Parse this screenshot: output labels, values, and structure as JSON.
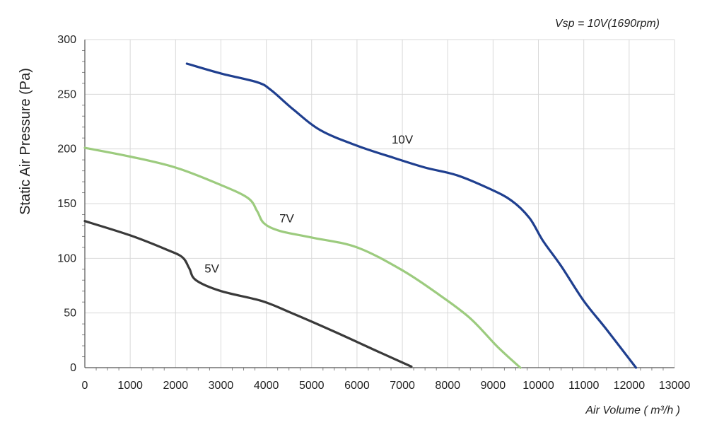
{
  "chart_data": {
    "type": "line",
    "annotation": "Vsp = 10V(1690rpm)",
    "xlabel": "Air Volume ( m³/h )",
    "ylabel": "Static Air Pressure  (Pa)",
    "xlim": [
      0,
      13000
    ],
    "ylim": [
      0,
      300
    ],
    "x_ticks": [
      0,
      1000,
      2000,
      3000,
      4000,
      5000,
      6000,
      7000,
      8000,
      9000,
      10000,
      11000,
      12000,
      13000
    ],
    "y_ticks": [
      0,
      50,
      100,
      150,
      200,
      250,
      300
    ],
    "grid": true,
    "legend": "none",
    "series": [
      {
        "name": "10V",
        "color": "#1f3f8f",
        "label_at": [
          7000,
          205
        ],
        "points": [
          [
            2250,
            278
          ],
          [
            3000,
            269
          ],
          [
            3800,
            261
          ],
          [
            4100,
            254
          ],
          [
            4600,
            236
          ],
          [
            5200,
            217
          ],
          [
            6000,
            203
          ],
          [
            6800,
            192
          ],
          [
            7500,
            183
          ],
          [
            8200,
            176
          ],
          [
            8900,
            164
          ],
          [
            9400,
            153
          ],
          [
            9800,
            137
          ],
          [
            10100,
            116
          ],
          [
            10500,
            93
          ],
          [
            11000,
            61
          ],
          [
            11500,
            35
          ],
          [
            12150,
            0
          ]
        ]
      },
      {
        "name": "7V",
        "color": "#9ccb7e",
        "label_at": [
          4450,
          133
        ],
        "points": [
          [
            0,
            201
          ],
          [
            1000,
            193
          ],
          [
            2000,
            183
          ],
          [
            3000,
            167
          ],
          [
            3600,
            155
          ],
          [
            3800,
            143
          ],
          [
            3950,
            132
          ],
          [
            4300,
            125
          ],
          [
            5000,
            119
          ],
          [
            6000,
            110
          ],
          [
            7000,
            89
          ],
          [
            7800,
            67
          ],
          [
            8500,
            45
          ],
          [
            9100,
            19
          ],
          [
            9600,
            0
          ]
        ]
      },
      {
        "name": "5V",
        "color": "#3a3a3a",
        "label_at": [
          2800,
          87
        ],
        "points": [
          [
            0,
            134
          ],
          [
            1000,
            121
          ],
          [
            1800,
            108
          ],
          [
            2150,
            101
          ],
          [
            2300,
            91
          ],
          [
            2450,
            80
          ],
          [
            3000,
            70
          ],
          [
            3900,
            61
          ],
          [
            4500,
            51
          ],
          [
            5500,
            33
          ],
          [
            6500,
            14
          ],
          [
            7200,
            1
          ]
        ]
      }
    ]
  }
}
